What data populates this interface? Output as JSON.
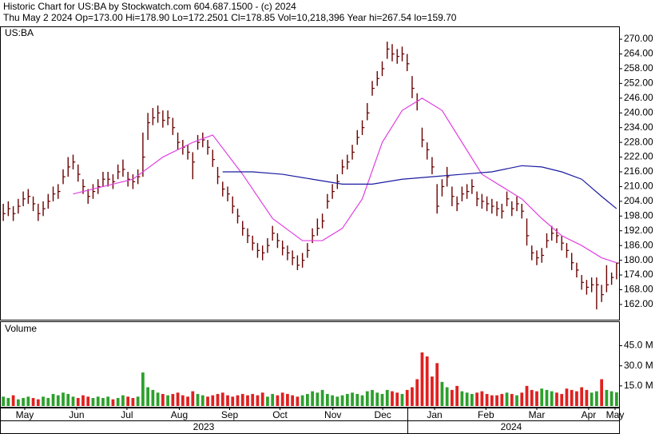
{
  "chart_data": {
    "type": "ohlc",
    "title": "Historic Chart for US:BA by Stockwatch.com 604.687.1500 - (c) 2024",
    "subtitle": "Thu May  2 2024  Op=173.00  Hi=178.90  Lo=172.2501  Cl=178.85  Vol=10,218,396  Year hi=267.54  lo=159.70",
    "symbol": "US:BA",
    "volume_label": "Volume",
    "years": [
      "2023",
      "2024"
    ],
    "bar_color": "#6a0000",
    "up_color": "#2ca02c",
    "down_color": "#e02020",
    "xlim": [
      -0.5,
      123.5
    ],
    "xticks": [
      {
        "value": 4.3,
        "label": "May"
      },
      {
        "value": 14.7,
        "label": "Jun"
      },
      {
        "value": 24.8,
        "label": "Jul"
      },
      {
        "value": 35.3,
        "label": "Aug"
      },
      {
        "value": 45.4,
        "label": "Sep"
      },
      {
        "value": 55.5,
        "label": "Oct"
      },
      {
        "value": 66.1,
        "label": "Nov"
      },
      {
        "value": 76.1,
        "label": "Dec"
      },
      {
        "value": 86.5,
        "label": "Jan"
      },
      {
        "value": 96.8,
        "label": "Feb"
      },
      {
        "value": 107,
        "label": "Mar"
      },
      {
        "value": 117.4,
        "label": "Apr"
      },
      {
        "value": 122.7,
        "label": "May"
      }
    ],
    "ylim": [
      155.8,
      274.9
    ],
    "yticks": [
      {
        "value": 162,
        "label": "162.00"
      },
      {
        "value": 168,
        "label": "168.00"
      },
      {
        "value": 174,
        "label": "174.00"
      },
      {
        "value": 180,
        "label": "180.00"
      },
      {
        "value": 186,
        "label": "186.00"
      },
      {
        "value": 192,
        "label": "192.00"
      },
      {
        "value": 198,
        "label": "198.00"
      },
      {
        "value": 204,
        "label": "204.00"
      },
      {
        "value": 210,
        "label": "210.00"
      },
      {
        "value": 216,
        "label": "216.00"
      },
      {
        "value": 222,
        "label": "222.00"
      },
      {
        "value": 228,
        "label": "228.00"
      },
      {
        "value": 234,
        "label": "234.00"
      },
      {
        "value": 240,
        "label": "240.00"
      },
      {
        "value": 246,
        "label": "246.00"
      },
      {
        "value": 252,
        "label": "252.00"
      },
      {
        "value": 258,
        "label": "258.00"
      },
      {
        "value": 264,
        "label": "264.00"
      },
      {
        "value": 270,
        "label": "270.00"
      }
    ],
    "high": [
      203,
      204,
      202,
      205,
      208,
      209,
      206,
      203,
      204,
      207,
      210,
      211,
      217,
      222,
      223,
      219,
      213,
      209,
      211,
      213,
      216,
      216,
      215,
      219,
      221,
      216,
      215,
      217,
      232,
      240,
      242,
      243,
      241,
      241,
      238,
      232,
      229,
      227,
      224,
      231,
      232,
      229,
      225,
      218,
      212,
      210,
      206,
      201,
      196,
      193,
      190,
      187,
      186,
      189,
      194,
      191,
      188,
      186,
      184,
      182,
      183,
      187,
      193,
      197,
      199,
      207,
      211,
      215,
      221,
      223,
      227,
      233,
      237,
      244,
      253,
      257,
      261,
      269,
      268,
      266,
      267,
      264,
      255,
      248,
      234,
      228,
      222,
      211,
      213,
      218,
      210,
      206,
      210,
      211,
      213,
      208,
      207,
      206,
      205,
      204,
      203,
      208,
      204,
      206,
      203,
      197,
      186,
      184,
      185,
      191,
      194,
      193,
      190,
      187,
      183,
      179,
      174,
      172,
      173,
      173,
      170,
      178,
      175,
      178.9
    ],
    "low": [
      196,
      198,
      196,
      199,
      202,
      203,
      200,
      196,
      198,
      201,
      204,
      205,
      211,
      214,
      217,
      212,
      207,
      203,
      205,
      207,
      210,
      210,
      209,
      213,
      214,
      210,
      209,
      211,
      214,
      229,
      235,
      236,
      234,
      235,
      231,
      225,
      223,
      221,
      213,
      225,
      226,
      223,
      218,
      211,
      206,
      204,
      199,
      195,
      190,
      187,
      184,
      181,
      180,
      183,
      188,
      185,
      182,
      180,
      178,
      176,
      177,
      181,
      187,
      190,
      193,
      201,
      205,
      209,
      215,
      217,
      221,
      227,
      231,
      237,
      247,
      251,
      255,
      262,
      261,
      260,
      261,
      257,
      246,
      241,
      226,
      221,
      215,
      199,
      206,
      210,
      202,
      200,
      204,
      205,
      207,
      202,
      201,
      200,
      199,
      198,
      197,
      202,
      198,
      200,
      197,
      186,
      180,
      178,
      179,
      185,
      188,
      187,
      184,
      181,
      176,
      173,
      168,
      166,
      167,
      160,
      163,
      167,
      170,
      172.25
    ],
    "close": [
      199,
      201,
      199,
      202,
      205,
      206,
      203,
      199,
      201,
      204,
      207,
      208,
      214,
      218,
      220,
      215,
      210,
      206,
      208,
      210,
      213,
      213,
      212,
      216,
      217,
      213,
      212,
      214,
      222,
      236,
      238,
      240,
      237,
      238,
      234,
      228,
      226,
      224,
      220,
      228,
      229,
      226,
      221,
      214,
      209,
      207,
      202,
      198,
      193,
      190,
      187,
      184,
      183,
      186,
      191,
      188,
      185,
      183,
      181,
      178,
      180,
      184,
      190,
      193,
      196,
      204,
      208,
      212,
      218,
      220,
      224,
      230,
      234,
      240,
      250,
      254,
      258,
      266,
      264,
      263,
      264,
      260,
      250,
      245,
      229,
      225,
      218,
      202,
      210,
      214,
      206,
      203,
      207,
      208,
      210,
      205,
      204,
      203,
      202,
      201,
      200,
      205,
      201,
      203,
      200,
      190,
      183,
      181,
      182,
      188,
      191,
      190,
      187,
      184,
      179,
      176,
      171,
      169,
      170,
      170,
      166,
      170,
      173,
      178.85
    ],
    "lines": [
      {
        "color": "#e040e0",
        "x": [
          14,
          20,
          26,
          32,
          38,
          42,
          48,
          54,
          60,
          64,
          68,
          72,
          76,
          80,
          84,
          88,
          92,
          96,
          100,
          104,
          108,
          112,
          116,
          120,
          123
        ],
        "values": [
          207,
          210,
          213,
          222,
          228,
          231,
          215,
          197,
          188,
          188,
          193,
          205,
          228,
          241,
          246,
          241,
          228,
          215,
          210,
          205,
          197,
          190,
          186,
          181,
          179
        ]
      },
      {
        "color": "#1a1aa0",
        "x": [
          44,
          50,
          56,
          62,
          68,
          74,
          80,
          86,
          92,
          98,
          104,
          108,
          112,
          116,
          120,
          123
        ],
        "values": [
          216,
          216,
          215,
          213,
          211,
          211,
          213,
          214,
          215,
          216,
          218.5,
          218,
          216,
          213,
          206,
          201
        ]
      }
    ],
    "volume": [
      7,
      6,
      8,
      5,
      6,
      7,
      6,
      5,
      7,
      6,
      9,
      8,
      10,
      9,
      7,
      6,
      8,
      7,
      6,
      7,
      6,
      7,
      5,
      6,
      8,
      7,
      6,
      7,
      25,
      14,
      12,
      10,
      9,
      8,
      9,
      10,
      8,
      7,
      11,
      9,
      8,
      7,
      8,
      9,
      10,
      8,
      7,
      8,
      9,
      8,
      9,
      8,
      10,
      7,
      9,
      8,
      10,
      9,
      8,
      7,
      8,
      9,
      11,
      10,
      12,
      9,
      8,
      7,
      8,
      9,
      10,
      9,
      8,
      11,
      12,
      10,
      9,
      12,
      11,
      10,
      9,
      12,
      14,
      20,
      40,
      37,
      22,
      32,
      18,
      14,
      12,
      15,
      11,
      10,
      9,
      10,
      11,
      9,
      8,
      8,
      9,
      10,
      9,
      8,
      10,
      15,
      12,
      11,
      13,
      12,
      11,
      10,
      9,
      13,
      12,
      11,
      14,
      12,
      10,
      11,
      20,
      12,
      11,
      10.2
    ],
    "vlim": [
      0,
      62
    ],
    "vticks": [
      {
        "value": 15,
        "label": "15.0 M"
      },
      {
        "value": 30,
        "label": "30.0 M"
      },
      {
        "value": 45,
        "label": "45.0 M"
      }
    ]
  }
}
